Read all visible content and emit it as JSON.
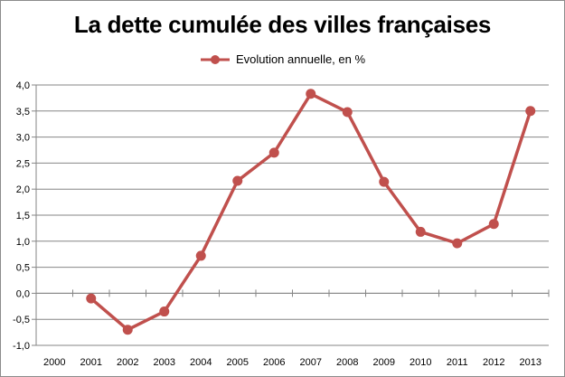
{
  "chart_data": {
    "type": "line",
    "title": "La dette cumulée des villes françaises",
    "xlabel": "",
    "ylabel": "",
    "categories": [
      "2000",
      "2001",
      "2002",
      "2003",
      "2004",
      "2005",
      "2006",
      "2007",
      "2008",
      "2009",
      "2010",
      "2011",
      "2012",
      "2013"
    ],
    "series": [
      {
        "name": "Evolution annuelle, en %",
        "values": [
          null,
          -0.1,
          -0.7,
          -0.35,
          0.72,
          2.16,
          2.7,
          3.83,
          3.48,
          2.14,
          1.18,
          0.96,
          1.33,
          3.5
        ],
        "color": "#c0504d"
      }
    ],
    "ylim": [
      -1.0,
      4.0
    ],
    "yticks": [
      -1.0,
      -0.5,
      0.0,
      0.5,
      1.0,
      1.5,
      2.0,
      2.5,
      3.0,
      3.5,
      4.0
    ],
    "ytick_labels": [
      "-1,0",
      "-0,5",
      "0,0",
      "0,5",
      "1,0",
      "1,5",
      "2,0",
      "2,5",
      "3,0",
      "3,5",
      "4,0"
    ],
    "grid": true,
    "legend_position": "top"
  }
}
